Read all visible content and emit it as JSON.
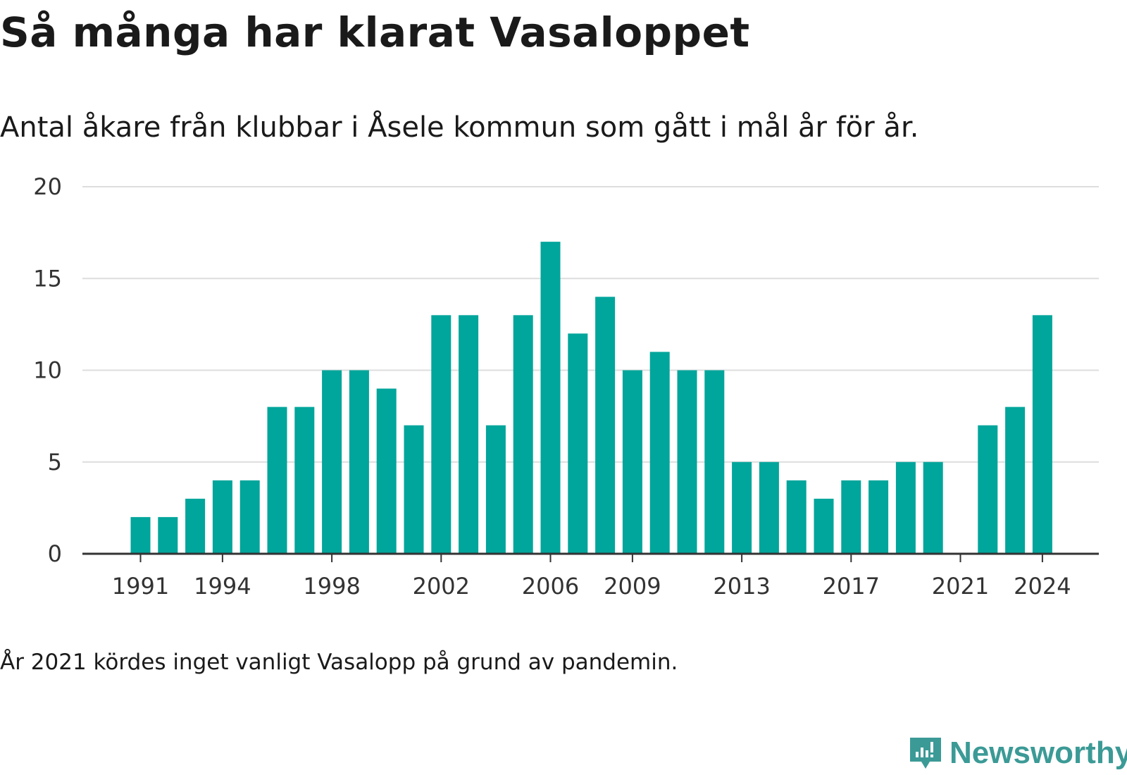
{
  "title": "Så många har klarat Vasaloppet",
  "subtitle": "Antal åkare från klubbar i Åsele kommun som gått i mål år för år.",
  "note": "År 2021 kördes inget vanligt Vasalopp på grund av pandemin.",
  "logo": {
    "text": "Newsworthy",
    "icon": "newsworthy-chart-icon",
    "color": "#3b9a96"
  },
  "colors": {
    "bar": "#00a59b",
    "grid": "#dddddd",
    "axis": "#333333"
  },
  "chart_data": {
    "type": "bar",
    "categories": [
      "1991",
      "1992",
      "1993",
      "1994",
      "1995",
      "1996",
      "1997",
      "1998",
      "1999",
      "2000",
      "2001",
      "2002",
      "2003",
      "2004",
      "2005",
      "2006",
      "2007",
      "2008",
      "2009",
      "2010",
      "2011",
      "2012",
      "2013",
      "2014",
      "2015",
      "2016",
      "2017",
      "2018",
      "2019",
      "2020",
      "2021",
      "2022",
      "2023",
      "2024"
    ],
    "values": [
      2,
      2,
      3,
      4,
      4,
      8,
      8,
      10,
      10,
      9,
      7,
      13,
      13,
      7,
      13,
      17,
      12,
      14,
      10,
      11,
      10,
      10,
      5,
      5,
      4,
      3,
      4,
      4,
      5,
      5,
      0,
      7,
      8,
      13
    ],
    "xticks": [
      "1991",
      "1994",
      "1998",
      "2002",
      "2006",
      "2009",
      "2013",
      "2017",
      "2021",
      "2024"
    ],
    "yticks": [
      0,
      5,
      10,
      15,
      20
    ],
    "ylim": [
      0,
      20
    ],
    "grid": true,
    "legend": "none"
  }
}
